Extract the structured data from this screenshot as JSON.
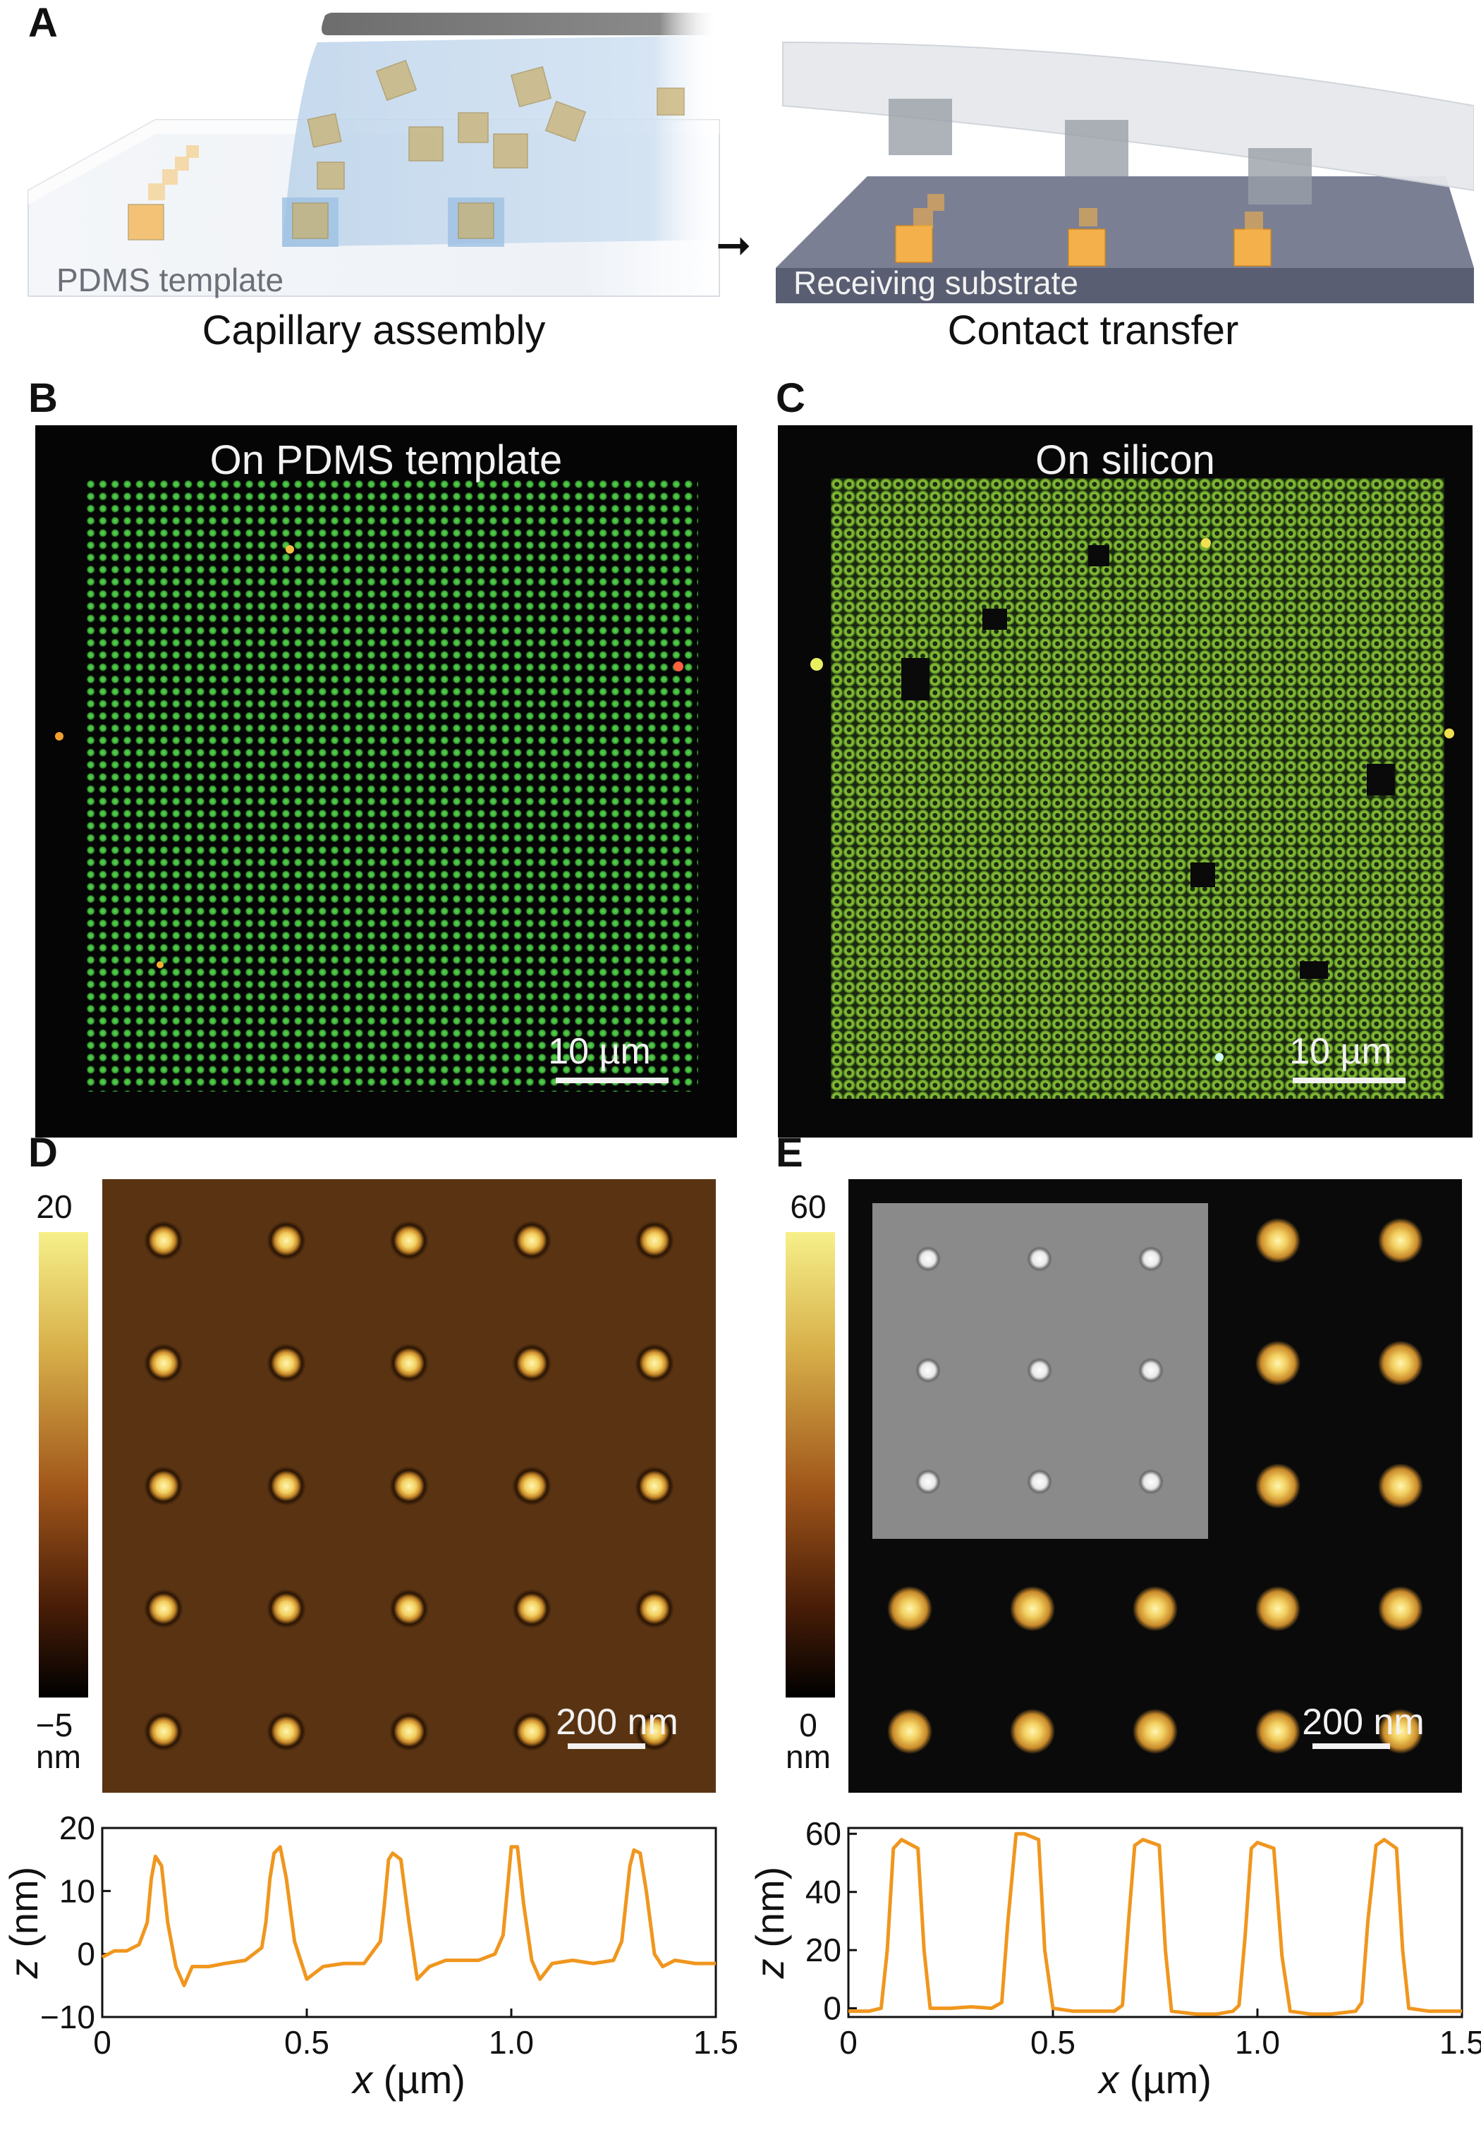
{
  "panels": {
    "A": {
      "letter": "A",
      "left_caption": "Capillary assembly",
      "left_label": "PDMS template",
      "right_caption": "Contact transfer",
      "right_label": "Receiving substrate",
      "arrow_icon": "right-arrow-icon"
    },
    "B": {
      "letter": "B",
      "title": "On PDMS template",
      "scalebar": "10 µm"
    },
    "C": {
      "letter": "C",
      "title": "On silicon",
      "scalebar": "10 µm"
    },
    "D": {
      "letter": "D",
      "scalebar": "200 nm",
      "colorbar": {
        "max": "20",
        "min": "−5",
        "unit": "nm"
      }
    },
    "E": {
      "letter": "E",
      "scalebar": "200 nm",
      "colorbar": {
        "max": "60",
        "min": "0",
        "unit": "nm"
      }
    }
  },
  "colors": {
    "profile_line": "#f0961e",
    "fluor_green": "#4fd04a",
    "colorbar_high": "#f6f08a",
    "colorbar_mid": "#a0561a",
    "colorbar_low": "#000000"
  },
  "chart_data": [
    {
      "id": "D-profile",
      "type": "line",
      "xlabel": "x (µm)",
      "ylabel": "z (nm)",
      "xlim": [
        0,
        1.5
      ],
      "ylim": [
        -10,
        20
      ],
      "xticks": [
        "0",
        "0.5",
        "1.0",
        "1.5"
      ],
      "yticks": [
        "−10",
        "0",
        "10",
        "20"
      ],
      "xtick_values": [
        0,
        0.5,
        1.0,
        1.5
      ],
      "ytick_values": [
        -10,
        0,
        10,
        20
      ],
      "x": [
        0,
        0.03,
        0.06,
        0.09,
        0.11,
        0.12,
        0.13,
        0.145,
        0.16,
        0.18,
        0.2,
        0.22,
        0.26,
        0.3,
        0.35,
        0.39,
        0.4,
        0.41,
        0.42,
        0.435,
        0.45,
        0.47,
        0.5,
        0.54,
        0.59,
        0.64,
        0.68,
        0.69,
        0.7,
        0.71,
        0.73,
        0.75,
        0.77,
        0.8,
        0.84,
        0.88,
        0.92,
        0.96,
        0.98,
        0.99,
        1.0,
        1.015,
        1.03,
        1.05,
        1.07,
        1.1,
        1.15,
        1.2,
        1.25,
        1.27,
        1.28,
        1.29,
        1.3,
        1.315,
        1.33,
        1.35,
        1.37,
        1.4,
        1.45,
        1.5
      ],
      "y": [
        -0.5,
        0.5,
        0.5,
        1.5,
        5,
        12,
        15.5,
        14,
        5,
        -2,
        -5,
        -2,
        -2,
        -1.5,
        -1,
        1,
        5,
        12,
        16,
        17,
        12,
        2,
        -4,
        -2,
        -1.5,
        -1.5,
        2,
        8,
        15,
        16,
        15,
        5,
        -4,
        -2,
        -1,
        -1,
        -1,
        0,
        3,
        10,
        17,
        17,
        8,
        -1,
        -4,
        -1.5,
        -1,
        -1.5,
        -1,
        2,
        8,
        14,
        16.5,
        16,
        10,
        0,
        -2,
        -1,
        -1.5,
        -1.5
      ]
    },
    {
      "id": "E-profile",
      "type": "line",
      "xlabel": "x (µm)",
      "ylabel": "z (nm)",
      "xlim": [
        0,
        1.5
      ],
      "ylim": [
        -3,
        62
      ],
      "xticks": [
        "0",
        "0.5",
        "1.0",
        "1.5"
      ],
      "yticks": [
        "0",
        "20",
        "40",
        "60"
      ],
      "xtick_values": [
        0,
        0.5,
        1.0,
        1.5
      ],
      "ytick_values": [
        0,
        20,
        40,
        60
      ],
      "x": [
        0,
        0.05,
        0.08,
        0.095,
        0.11,
        0.13,
        0.17,
        0.185,
        0.2,
        0.25,
        0.3,
        0.35,
        0.375,
        0.39,
        0.41,
        0.43,
        0.465,
        0.48,
        0.5,
        0.55,
        0.6,
        0.65,
        0.67,
        0.685,
        0.7,
        0.72,
        0.76,
        0.775,
        0.79,
        0.85,
        0.9,
        0.94,
        0.955,
        0.97,
        0.985,
        1.0,
        1.04,
        1.06,
        1.08,
        1.13,
        1.18,
        1.24,
        1.255,
        1.27,
        1.29,
        1.31,
        1.34,
        1.355,
        1.37,
        1.42,
        1.46,
        1.5
      ],
      "y": [
        -1,
        -1,
        0,
        20,
        55,
        58,
        55,
        20,
        0,
        0,
        0.5,
        0,
        2,
        30,
        60,
        60,
        58,
        20,
        0,
        -1,
        -1,
        -1,
        1,
        30,
        56,
        58,
        56,
        20,
        -1,
        -2,
        -2,
        -1,
        1,
        25,
        55,
        57,
        55,
        18,
        -1,
        -2,
        -2,
        -1,
        2,
        30,
        56,
        58,
        55,
        20,
        0,
        -1,
        -1,
        -1
      ]
    }
  ]
}
